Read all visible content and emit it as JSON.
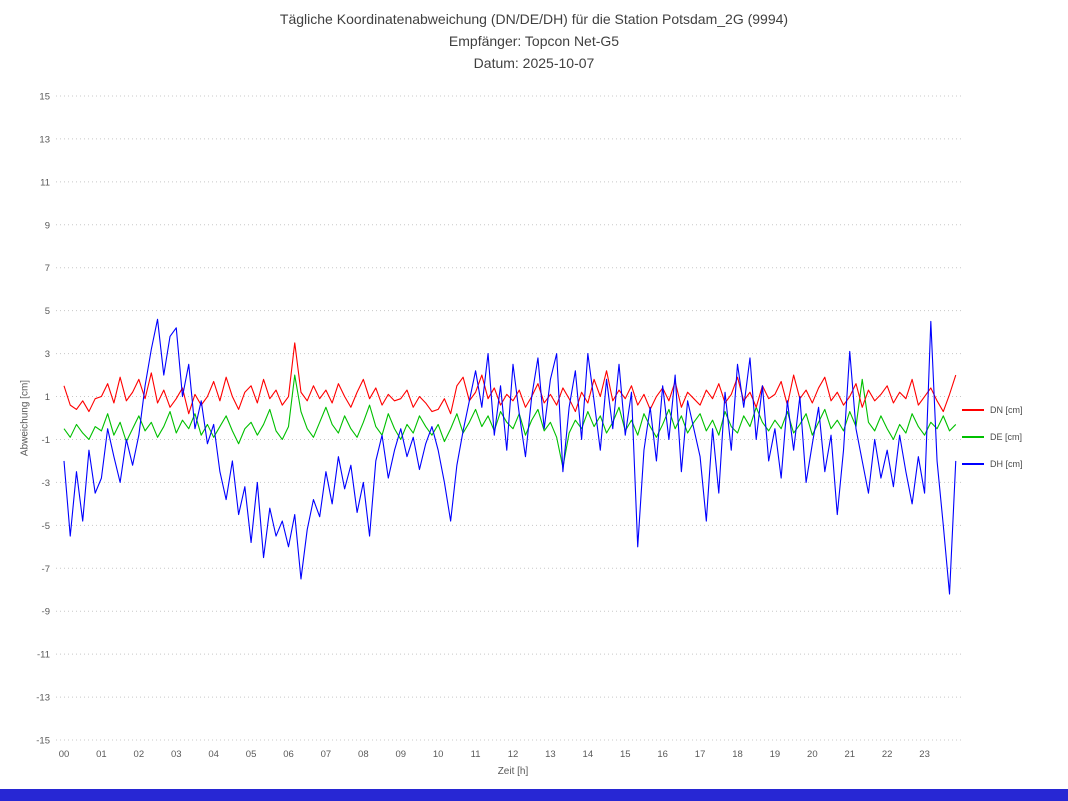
{
  "title": {
    "line1": "Tägliche Koordinatenabweichung (DN/DE/DH) für die Station Potsdam_2G (9994)",
    "line2": "Empfänger: Topcon Net-G5",
    "line3": "Datum: 2025-10-07"
  },
  "colors": {
    "title_text": "#404040",
    "axis_text": "#595959",
    "gridline": "#c8c8c8",
    "dn": "#ff0000",
    "de": "#00c000",
    "dh": "#0000ff",
    "bottom_bar": "#2727d4"
  },
  "chart_data": {
    "type": "line",
    "xlabel": "Zeit [h]",
    "ylabel": "Abweichung [cm]",
    "xlim": [
      0,
      24
    ],
    "ylim": [
      -15,
      15
    ],
    "grid": "dotted-horizontal",
    "legend_position": "right",
    "x_ticks": [
      "00",
      "01",
      "02",
      "03",
      "04",
      "05",
      "06",
      "07",
      "08",
      "09",
      "10",
      "11",
      "12",
      "13",
      "14",
      "15",
      "16",
      "17",
      "18",
      "19",
      "20",
      "21",
      "22",
      "23"
    ],
    "y_ticks": [
      15,
      13,
      11,
      9,
      7,
      5,
      3,
      1,
      -1,
      -3,
      -5,
      -7,
      -9,
      -11,
      -13,
      -15
    ],
    "sample_interval_hours": 0.1667,
    "series": [
      {
        "name": "DN [cm]",
        "color": "#ff0000",
        "values": [
          1.5,
          0.6,
          0.4,
          0.8,
          0.3,
          0.9,
          1.0,
          1.6,
          0.7,
          1.9,
          0.8,
          1.2,
          1.8,
          0.9,
          2.1,
          0.7,
          1.3,
          0.5,
          0.9,
          1.4,
          0.2,
          1.1,
          0.6,
          1.0,
          1.7,
          0.8,
          1.9,
          1.0,
          0.4,
          1.2,
          1.5,
          0.7,
          1.8,
          0.9,
          1.3,
          0.6,
          1.0,
          3.5,
          1.2,
          0.8,
          1.5,
          0.9,
          1.3,
          0.7,
          1.6,
          1.0,
          0.5,
          1.2,
          1.8,
          0.9,
          1.4,
          0.6,
          1.1,
          0.8,
          0.9,
          1.3,
          0.5,
          1.0,
          0.7,
          0.3,
          0.4,
          0.9,
          0.2,
          1.5,
          1.9,
          0.8,
          1.2,
          2.0,
          0.9,
          1.4,
          0.6,
          1.1,
          0.8,
          1.3,
          0.5,
          1.0,
          1.6,
          0.7,
          1.1,
          0.6,
          1.4,
          0.9,
          0.3,
          1.2,
          0.7,
          1.8,
          1.0,
          2.2,
          0.8,
          1.3,
          0.9,
          1.5,
          0.6,
          1.1,
          0.4,
          1.0,
          1.4,
          0.8,
          1.7,
          0.5,
          1.2,
          0.9,
          0.6,
          1.3,
          0.9,
          1.6,
          0.7,
          1.1,
          1.9,
          0.8,
          1.2,
          0.5,
          1.5,
          0.9,
          1.1,
          1.7,
          0.6,
          2.0,
          0.9,
          1.3,
          0.7,
          1.4,
          1.9,
          0.8,
          1.2,
          0.6,
          1.0,
          1.6,
          0.5,
          1.3,
          0.8,
          1.1,
          1.5,
          0.7,
          1.2,
          0.9,
          1.8,
          0.6,
          1.0,
          1.4,
          0.8,
          0.3,
          1.1,
          2.0
        ]
      },
      {
        "name": "DE [cm]",
        "color": "#00c000",
        "values": [
          -0.5,
          -0.9,
          -0.3,
          -0.7,
          -1.0,
          -0.4,
          -0.6,
          0.2,
          -0.8,
          -0.2,
          -1.1,
          -0.5,
          0.1,
          -0.6,
          -0.2,
          -0.9,
          -0.4,
          0.3,
          -0.7,
          -0.1,
          -0.5,
          0.2,
          -0.8,
          -0.3,
          -0.9,
          -0.4,
          0.1,
          -0.6,
          -1.2,
          -0.5,
          -0.2,
          -0.8,
          -0.3,
          0.4,
          -0.6,
          -1.0,
          -0.4,
          2.0,
          0.3,
          -0.5,
          -0.9,
          -0.2,
          0.5,
          -0.3,
          -0.7,
          0.1,
          -0.5,
          -0.9,
          -0.2,
          0.6,
          -0.4,
          -0.8,
          0.2,
          -0.5,
          -1.0,
          -0.3,
          -0.7,
          0.1,
          -0.4,
          -0.8,
          -0.3,
          -1.1,
          -0.5,
          0.2,
          -0.7,
          -0.2,
          0.4,
          -0.4,
          0.1,
          -0.6,
          0.3,
          -0.2,
          -0.5,
          0.2,
          -0.8,
          -0.1,
          0.4,
          -0.6,
          -0.2,
          -0.9,
          -2.3,
          -0.7,
          -0.1,
          -0.5,
          0.3,
          -0.4,
          0.1,
          -0.7,
          -0.2,
          0.5,
          -0.6,
          -0.1,
          -0.8,
          0.2,
          -0.4,
          -0.9,
          -0.3,
          0.4,
          -0.5,
          0.1,
          -0.7,
          -0.2,
          0.2,
          -0.6,
          -0.1,
          -0.8,
          0.3,
          -0.4,
          -0.7,
          0.1,
          -0.4,
          0.5,
          -0.2,
          -0.6,
          -0.1,
          -0.5,
          0.3,
          -0.7,
          -0.3,
          0.2,
          -0.8,
          -0.2,
          0.4,
          -0.5,
          -0.1,
          -0.6,
          0.3,
          -0.4,
          1.8,
          -0.2,
          -0.6,
          0.1,
          -0.5,
          -1.0,
          -0.3,
          -0.7,
          0.2,
          -0.4,
          -0.8,
          -0.2,
          -0.5,
          0.1,
          -0.6,
          -0.3
        ]
      },
      {
        "name": "DH [cm]",
        "color": "#0000ff",
        "values": [
          -2.0,
          -5.5,
          -2.5,
          -4.8,
          -1.5,
          -3.5,
          -2.8,
          -0.5,
          -1.8,
          -3.0,
          -1.0,
          -2.2,
          -0.8,
          1.5,
          3.2,
          4.6,
          2.0,
          3.8,
          4.2,
          1.0,
          2.5,
          -0.5,
          0.8,
          -1.2,
          -0.3,
          -2.5,
          -3.8,
          -2.0,
          -4.5,
          -3.2,
          -5.8,
          -3.0,
          -6.5,
          -4.2,
          -5.5,
          -4.8,
          -6.0,
          -4.5,
          -7.5,
          -5.2,
          -3.8,
          -4.6,
          -2.5,
          -4.0,
          -1.8,
          -3.3,
          -2.2,
          -4.4,
          -3.0,
          -5.5,
          -2.0,
          -0.8,
          -2.8,
          -1.5,
          -0.5,
          -1.8,
          -0.9,
          -2.4,
          -1.2,
          -0.4,
          -1.5,
          -3.0,
          -4.8,
          -2.2,
          -0.6,
          0.8,
          2.2,
          0.5,
          3.0,
          -0.8,
          1.5,
          -1.5,
          2.5,
          0.2,
          -1.8,
          1.0,
          2.8,
          -0.5,
          1.8,
          3.0,
          -2.5,
          0.5,
          2.2,
          -1.0,
          3.0,
          0.8,
          -1.5,
          1.8,
          -0.5,
          2.5,
          -0.8,
          1.2,
          -6.0,
          -1.5,
          0.5,
          -2.0,
          1.5,
          -1.0,
          2.0,
          -2.5,
          0.8,
          -0.5,
          -1.8,
          -4.8,
          -0.5,
          -3.5,
          1.2,
          -1.5,
          2.5,
          0.5,
          2.8,
          -1.0,
          1.5,
          -2.0,
          -0.5,
          -2.8,
          0.8,
          -1.5,
          1.0,
          -3.0,
          -1.2,
          0.5,
          -2.5,
          -0.8,
          -4.5,
          -1.5,
          3.1,
          -0.5,
          -2.0,
          -3.5,
          -1.0,
          -2.8,
          -1.5,
          -3.2,
          -0.8,
          -2.5,
          -4.0,
          -1.8,
          -3.5,
          4.5,
          -2.0,
          -5.0,
          -8.2,
          -2.0
        ]
      }
    ]
  }
}
